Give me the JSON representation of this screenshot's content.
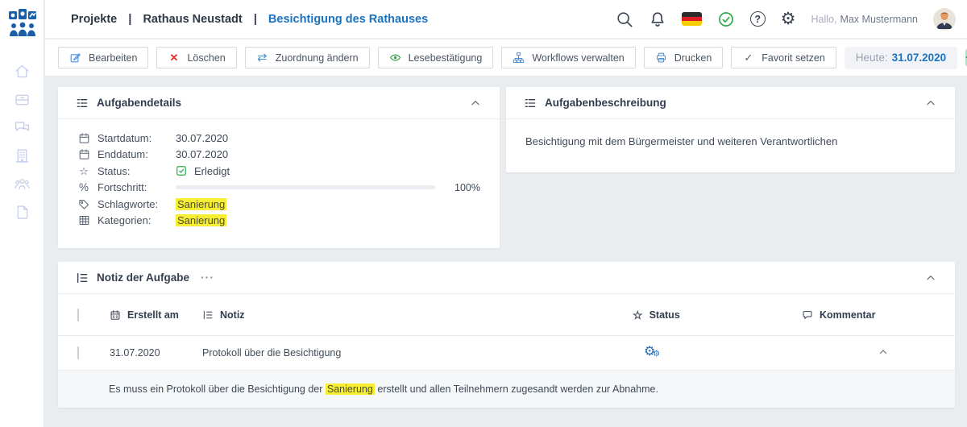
{
  "header": {
    "breadcrumb": [
      {
        "label": "Projekte"
      },
      {
        "label": "Rathaus Neustadt"
      },
      {
        "label": "Besichtigung des Rathauses"
      }
    ],
    "separator": "|",
    "greeting": "Hallo,",
    "user_name": "Max Mustermann",
    "icons": [
      "search-icon",
      "bell-icon",
      "german-flag-icon",
      "check-circle-icon",
      "help-icon",
      "gear-icon",
      "avatar"
    ]
  },
  "toolbar": {
    "buttons": [
      {
        "label": "Bearbeiten",
        "icon": "edit-icon"
      },
      {
        "label": "Löschen",
        "icon": "delete-x-icon"
      },
      {
        "label": "Zuordnung ändern",
        "icon": "swap-arrows-icon"
      },
      {
        "label": "Lesebestätigung",
        "icon": "eye-icon"
      },
      {
        "label": "Workflows verwalten",
        "icon": "sitemap-icon"
      },
      {
        "label": "Drucken",
        "icon": "printer-icon"
      },
      {
        "label": "Favorit setzen",
        "icon": "check-icon"
      }
    ],
    "today_label": "Heute:",
    "today_value": "31.07.2020",
    "add_button": "+"
  },
  "sidebar": {
    "items": [
      {
        "icon": "home-icon"
      },
      {
        "icon": "box-icon"
      },
      {
        "icon": "chat-icon"
      },
      {
        "icon": "building-icon"
      },
      {
        "icon": "team-icon"
      },
      {
        "icon": "document-icon"
      }
    ]
  },
  "details_panel": {
    "title": "Aufgabendetails",
    "rows": [
      {
        "icon": "calendar-icon",
        "label": "Startdatum:",
        "value": "30.07.2020"
      },
      {
        "icon": "calendar-icon",
        "label": "Enddatum:",
        "value": "30.07.2020"
      },
      {
        "icon": "star-icon",
        "label": "Status:",
        "value": "Erledigt"
      },
      {
        "icon": "percent-icon",
        "label": "Fortschritt:",
        "value": "100%"
      },
      {
        "icon": "tags-icon",
        "label": "Schlagworte:",
        "value": "Sanierung"
      },
      {
        "icon": "grid-icon",
        "label": "Kategorien:",
        "value": "Sanierung"
      }
    ],
    "progress_percent": 100
  },
  "description_panel": {
    "title": "Aufgabenbeschreibung",
    "text": "Besichtigung mit dem Bürgermeister und weiteren Verantwortlichen"
  },
  "notes_panel": {
    "title": "Notiz der Aufgabe",
    "menu": "···",
    "columns": {
      "created": "Erstellt am",
      "note": "Notiz",
      "status": "Status",
      "comment": "Kommentar"
    },
    "row": {
      "created": "31.07.2020",
      "note": "Protokoll über die Besichtigung"
    },
    "expanded": {
      "text_before": "Es muss ein Protokoll über die Besichtigung der ",
      "highlight": "Sanierung",
      "text_after": " erstellt und allen Teilnehmern zugesandt werden zur Abnahme."
    }
  },
  "colors": {
    "accent": "#1a73c0",
    "green": "#28a745",
    "red": "#e03131",
    "highlight": "#f6ee33",
    "progress": "#0f67ad"
  }
}
